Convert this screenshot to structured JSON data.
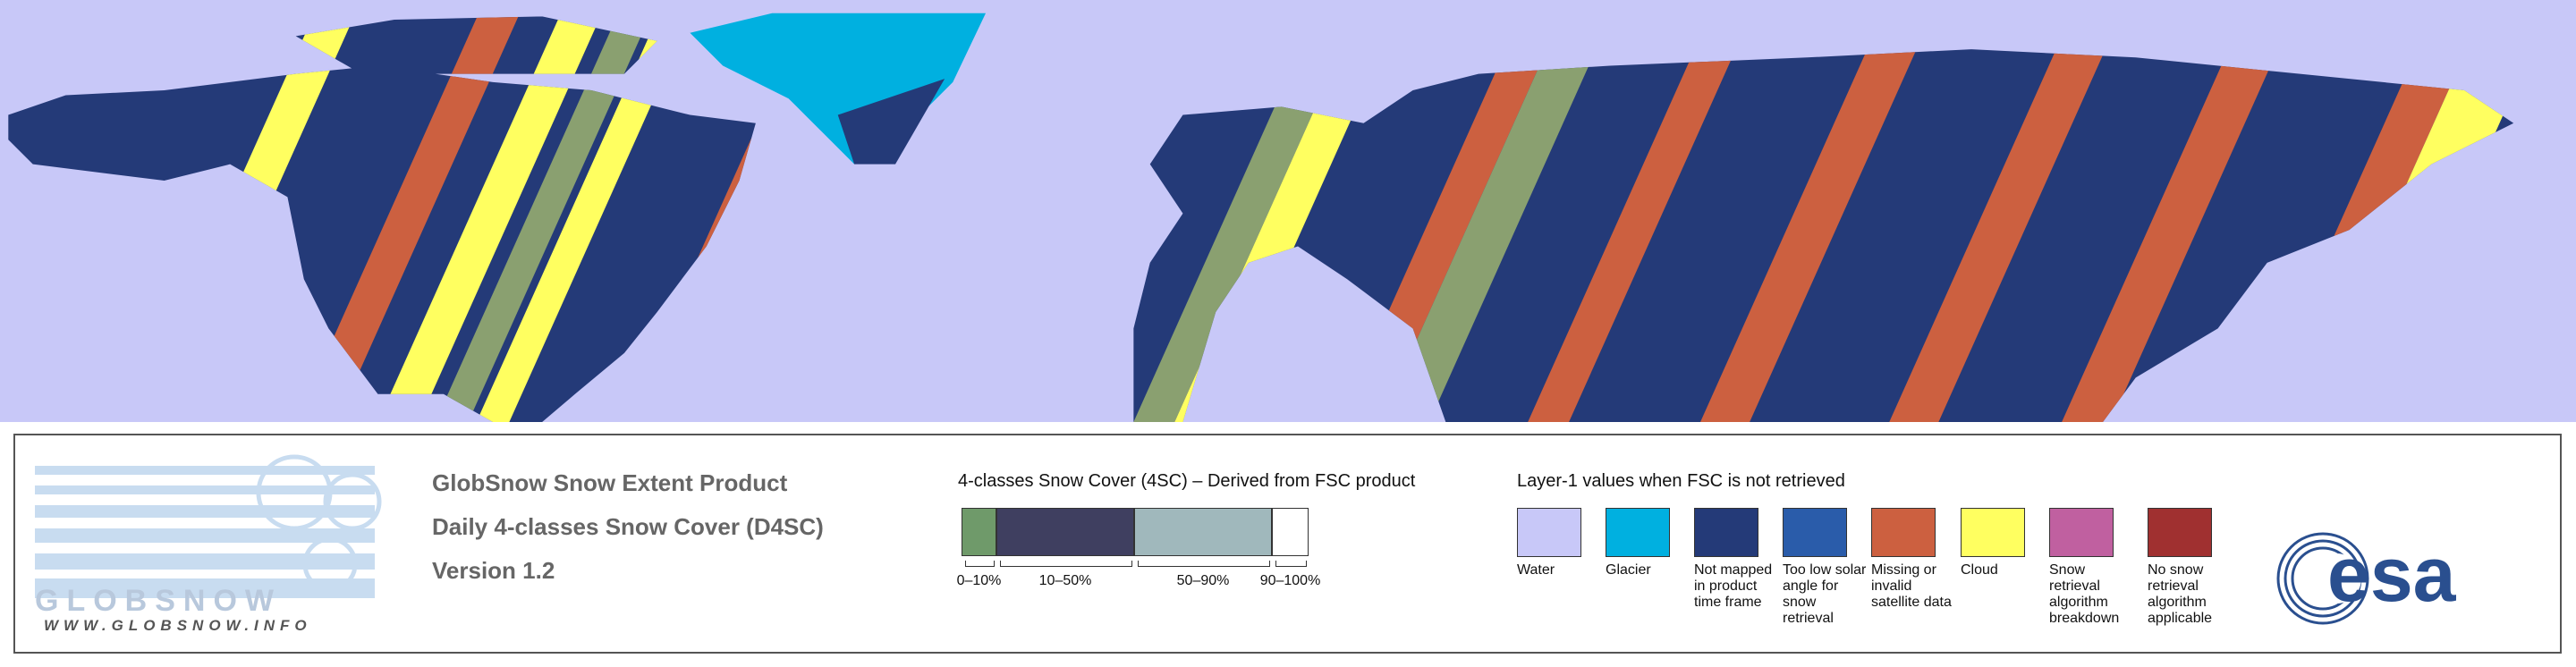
{
  "logo": {
    "name": "GLOBSNOW",
    "url": "WWW.GLOBSNOW.INFO"
  },
  "header": {
    "lines": [
      "GlobSnow Snow Extent Product",
      "Daily 4-classes Snow Cover (D4SC)",
      "Version 1.2"
    ]
  },
  "scale": {
    "title": "4-classes Snow Cover (4SC) – Derived from FSC product",
    "classes": [
      {
        "label": "0–10%",
        "color": "#6f9a6a"
      },
      {
        "label": "10–50%",
        "color": "#3f3f60"
      },
      {
        "label": "50–90%",
        "color": "#a0b8bc"
      },
      {
        "label": "90–100%",
        "color": "#ffffff"
      }
    ]
  },
  "layer1": {
    "title": "Layer-1 values when FSC is not retrieved",
    "items": [
      {
        "label": "Water",
        "color": "#c8c8f8"
      },
      {
        "label": "Glacier",
        "color": "#00b0e0"
      },
      {
        "label": "Not mapped in product time frame",
        "color": "#243a78"
      },
      {
        "label": "Too low solar angle for snow retrieval",
        "color": "#2a5caa"
      },
      {
        "label": "Missing or invalid satellite data",
        "color": "#cc6040"
      },
      {
        "label": "Cloud",
        "color": "#ffff60"
      },
      {
        "label": "Snow retrieval algorithm breakdown",
        "color": "#c060a0"
      },
      {
        "label": "No snow retrieval algorithm applicable",
        "color": "#a03030"
      }
    ]
  },
  "esa": "esa"
}
